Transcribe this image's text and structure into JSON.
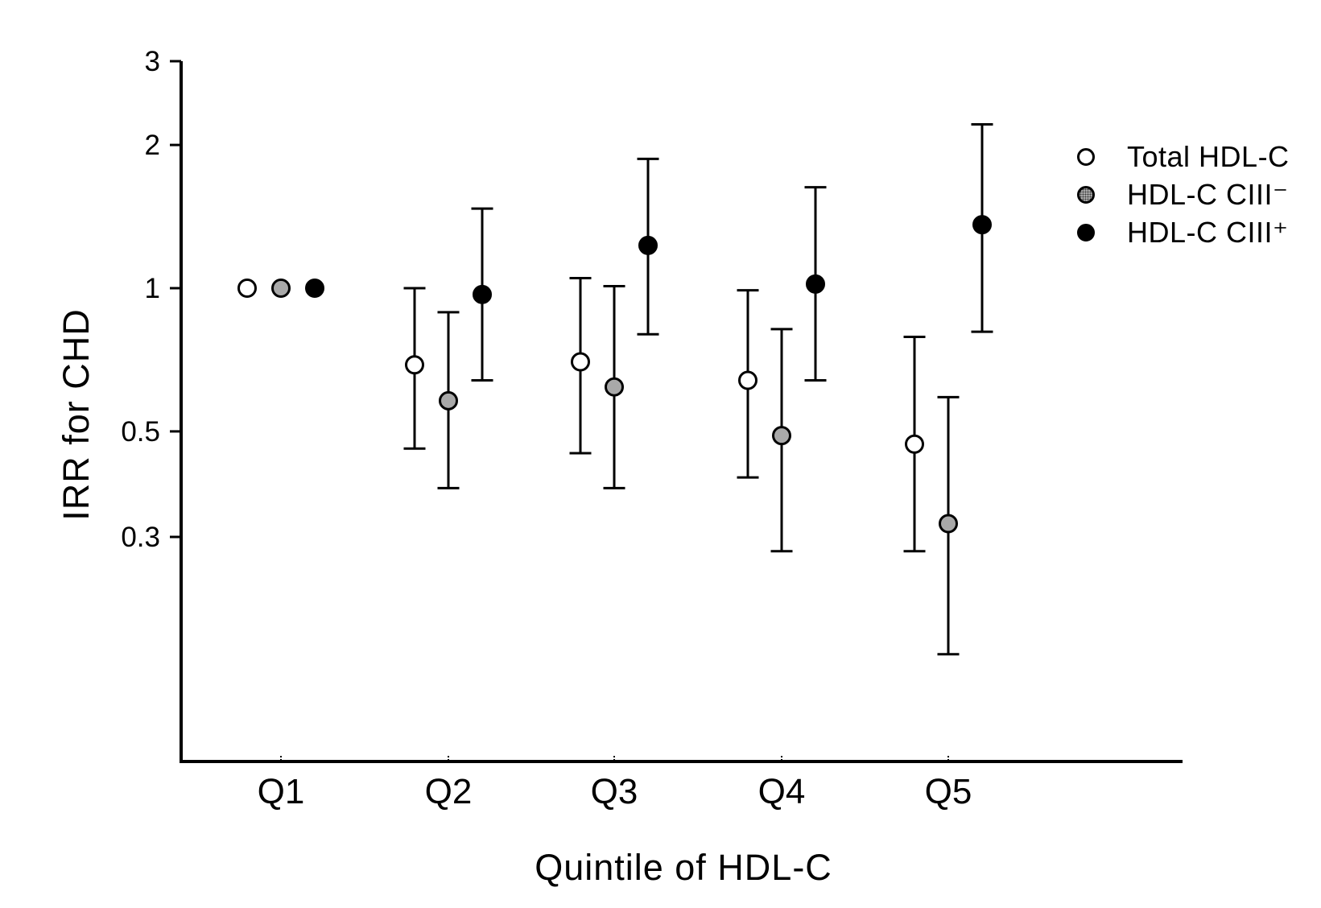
{
  "figure": {
    "y_axis_title": "IRR for CHD",
    "x_axis_title": "Quintile of HDL-C"
  },
  "legend": {
    "position": "upper-right-inside",
    "items": [
      {
        "label": "Total HDL-C",
        "marker": "open-circle",
        "fill": "#ffffff"
      },
      {
        "label": "HDL-C CIII⁻",
        "marker": "gray-circle",
        "fill": "#a9a9a9"
      },
      {
        "label": "HDL-C CIII⁺",
        "marker": "black-circle",
        "fill": "#000000"
      }
    ]
  },
  "chart_data": {
    "type": "scatter",
    "subtype": "point-estimates-with-95pct-CI-error-bars",
    "title": "",
    "xlabel": "Quintile of HDL-C",
    "ylabel": "IRR for CHD",
    "y_scale": "log",
    "y_ticks": [
      3,
      2,
      1,
      0.5,
      0.3
    ],
    "y_range": [
      0.13,
      3.2
    ],
    "grid": false,
    "categories": [
      "Q1",
      "Q2",
      "Q3",
      "Q4",
      "Q5"
    ],
    "series": [
      {
        "name": "Total HDL-C",
        "marker": "open-circle",
        "fill": "#ffffff",
        "values": [
          {
            "category": "Q1",
            "irr": 1.0,
            "ci_low": null,
            "ci_high": null
          },
          {
            "category": "Q2",
            "irr": 0.69,
            "ci_low": 0.46,
            "ci_high": 1.0
          },
          {
            "category": "Q3",
            "irr": 0.7,
            "ci_low": 0.45,
            "ci_high": 1.05
          },
          {
            "category": "Q4",
            "irr": 0.64,
            "ci_low": 0.4,
            "ci_high": 0.99
          },
          {
            "category": "Q5",
            "irr": 0.47,
            "ci_low": 0.28,
            "ci_high": 0.79
          }
        ]
      },
      {
        "name": "HDL-C CIII⁻",
        "marker": "gray-circle",
        "fill": "#a9a9a9",
        "values": [
          {
            "category": "Q1",
            "irr": 1.0,
            "ci_low": null,
            "ci_high": null
          },
          {
            "category": "Q2",
            "irr": 0.58,
            "ci_low": 0.38,
            "ci_high": 0.89
          },
          {
            "category": "Q3",
            "irr": 0.62,
            "ci_low": 0.38,
            "ci_high": 1.01
          },
          {
            "category": "Q4",
            "irr": 0.49,
            "ci_low": 0.28,
            "ci_high": 0.82
          },
          {
            "category": "Q5",
            "irr": 0.32,
            "ci_low": 0.17,
            "ci_high": 0.59
          }
        ]
      },
      {
        "name": "HDL-C CIII⁺",
        "marker": "black-circle",
        "fill": "#000000",
        "values": [
          {
            "category": "Q1",
            "irr": 1.0,
            "ci_low": null,
            "ci_high": null
          },
          {
            "category": "Q2",
            "irr": 0.97,
            "ci_low": 0.64,
            "ci_high": 1.47
          },
          {
            "category": "Q3",
            "irr": 1.23,
            "ci_low": 0.8,
            "ci_high": 1.87
          },
          {
            "category": "Q4",
            "irr": 1.02,
            "ci_low": 0.64,
            "ci_high": 1.63
          },
          {
            "category": "Q5",
            "irr": 1.36,
            "ci_low": 0.81,
            "ci_high": 2.21
          }
        ]
      }
    ]
  }
}
